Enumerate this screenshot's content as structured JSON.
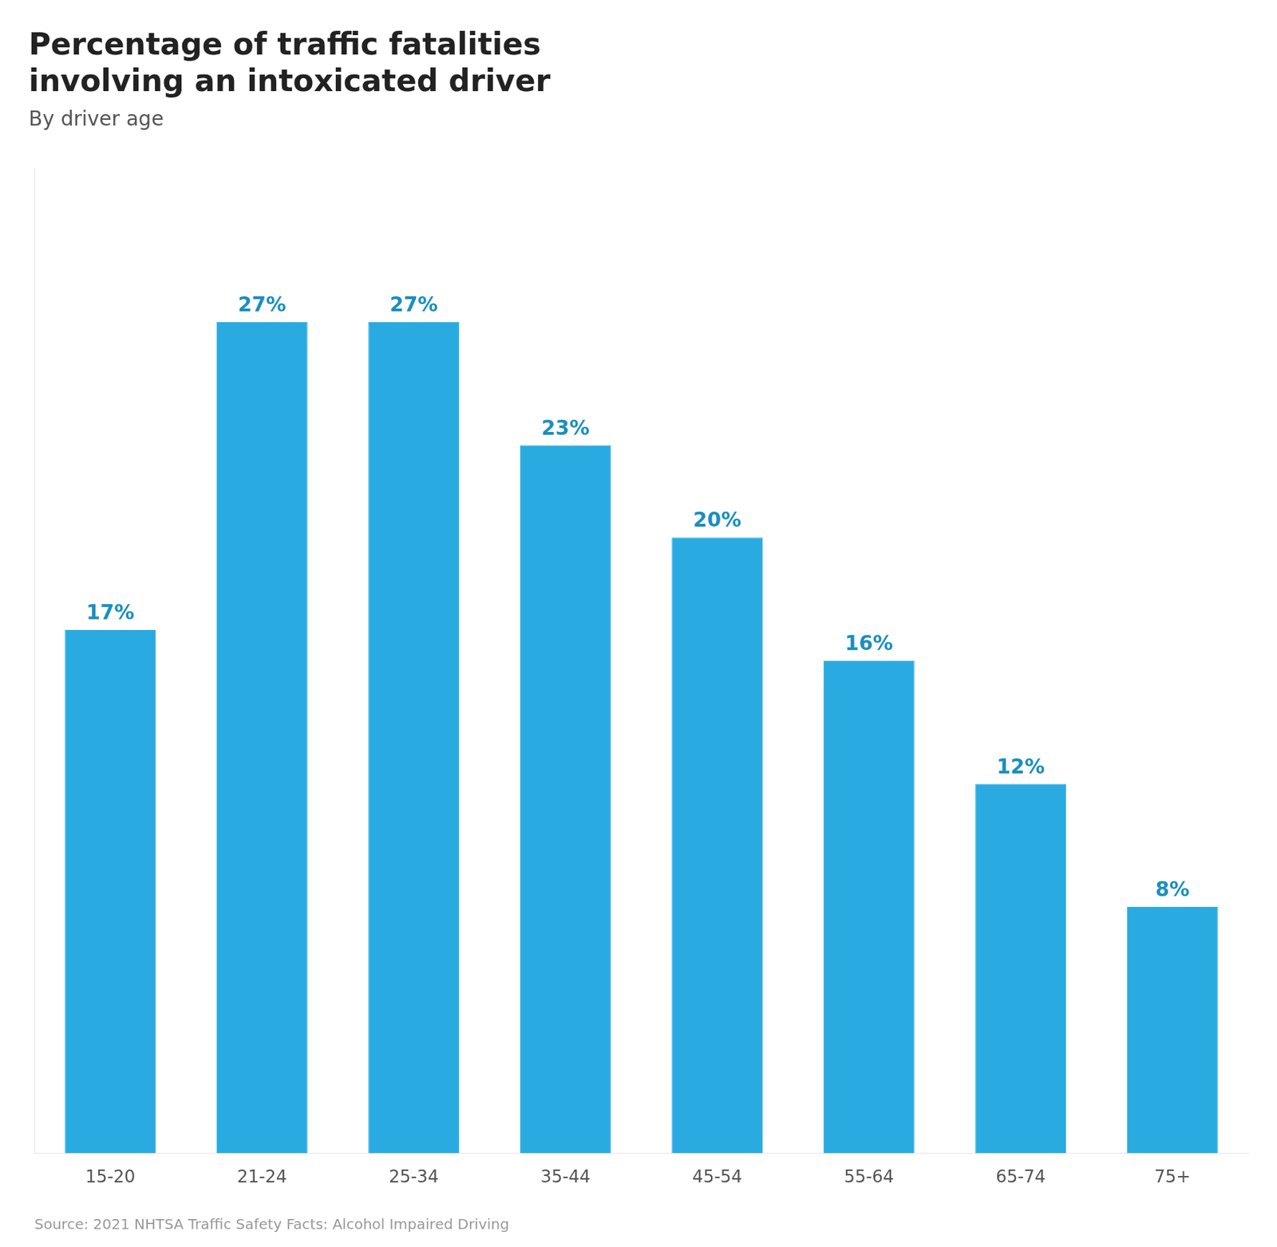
{
  "chart_data": {
    "type": "bar",
    "title": [
      "Percentage of traffic fatalities",
      "involving an intoxicated driver"
    ],
    "subtitle": "By driver age",
    "source": "Source: 2021 NHTSA Traffic Safety Facts: Alcohol Impaired Driving",
    "categories": [
      "15-20",
      "21-24",
      "25-34",
      "35-44",
      "45-54",
      "55-64",
      "65-74",
      "75+"
    ],
    "values": [
      17,
      27,
      27,
      23,
      20,
      16,
      12,
      8
    ],
    "value_labels": [
      "17%",
      "27%",
      "27%",
      "23%",
      "20%",
      "16%",
      "12%",
      "8%"
    ],
    "color": "#29ABE2",
    "ylim": [
      0,
      32
    ],
    "grid": false,
    "data_labels": true,
    "tick_labels": "x"
  }
}
